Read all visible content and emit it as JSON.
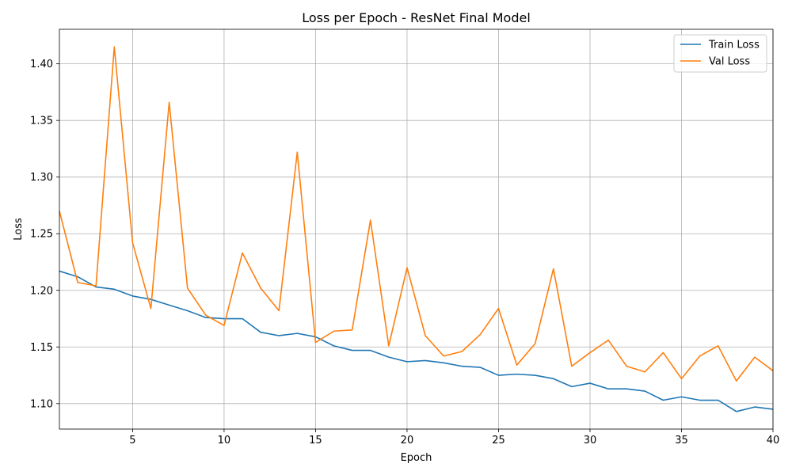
{
  "chart_data": {
    "type": "line",
    "title": "Loss per Epoch - ResNet Final Model",
    "xlabel": "Epoch",
    "ylabel": "Loss",
    "xlim": [
      1,
      40
    ],
    "ylim": [
      1.0775,
      1.4305
    ],
    "x_ticks": [
      5,
      10,
      15,
      20,
      25,
      30,
      35,
      40
    ],
    "y_ticks": [
      1.1,
      1.15,
      1.2,
      1.25,
      1.3,
      1.35,
      1.4
    ],
    "x_tick_labels": [
      "5",
      "10",
      "15",
      "20",
      "25",
      "30",
      "35",
      "40"
    ],
    "y_tick_labels": [
      "1.10",
      "1.15",
      "1.20",
      "1.25",
      "1.30",
      "1.35",
      "1.40"
    ],
    "grid": true,
    "legend_position": "top-right",
    "x": [
      1,
      2,
      3,
      4,
      5,
      6,
      7,
      8,
      9,
      10,
      11,
      12,
      13,
      14,
      15,
      16,
      17,
      18,
      19,
      20,
      21,
      22,
      23,
      24,
      25,
      26,
      27,
      28,
      29,
      30,
      31,
      32,
      33,
      34,
      35,
      36,
      37,
      38,
      39,
      40
    ],
    "series": [
      {
        "name": "Train Loss",
        "color": "#1f77b4",
        "values": [
          1.217,
          1.212,
          1.203,
          1.201,
          1.195,
          1.192,
          1.187,
          1.182,
          1.176,
          1.175,
          1.175,
          1.163,
          1.16,
          1.162,
          1.159,
          1.151,
          1.147,
          1.147,
          1.141,
          1.137,
          1.138,
          1.136,
          1.133,
          1.132,
          1.125,
          1.126,
          1.125,
          1.122,
          1.115,
          1.118,
          1.113,
          1.113,
          1.111,
          1.103,
          1.106,
          1.103,
          1.103,
          1.093,
          1.097,
          1.095
        ]
      },
      {
        "name": "Val Loss",
        "color": "#ff7f0e",
        "values": [
          1.27,
          1.207,
          1.204,
          1.415,
          1.242,
          1.184,
          1.366,
          1.202,
          1.178,
          1.169,
          1.233,
          1.202,
          1.182,
          1.322,
          1.154,
          1.164,
          1.165,
          1.262,
          1.151,
          1.22,
          1.16,
          1.142,
          1.146,
          1.161,
          1.184,
          1.134,
          1.153,
          1.219,
          1.133,
          1.145,
          1.156,
          1.133,
          1.128,
          1.145,
          1.122,
          1.142,
          1.151,
          1.12,
          1.141,
          1.129
        ]
      }
    ]
  }
}
